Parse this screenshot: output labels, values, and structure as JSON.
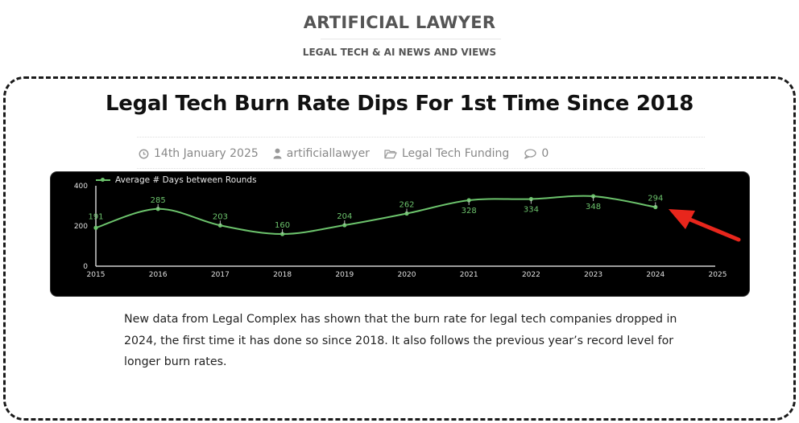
{
  "site": {
    "title": "ARTIFICIAL LAWYER",
    "tagline": "LEGAL TECH & AI NEWS AND VIEWS"
  },
  "post": {
    "title": "Legal Tech Burn Rate Dips For 1st Time Since 2018",
    "meta": {
      "date": "14th January 2025",
      "date_icon": "clock-icon",
      "author": "artificiallawyer",
      "author_icon": "user-icon",
      "category": "Legal Tech Funding",
      "category_icon": "folder-icon",
      "comments": "0",
      "comments_icon": "comment-icon"
    },
    "body": "New data from Legal Complex has shown that the burn rate for legal tech companies dropped in 2024, the first time it has done so since 2018. It also follows the previous year’s record level for longer burn rates."
  },
  "colors": {
    "line": "#6cc36c",
    "chart_bg": "#000000",
    "axis": "#cfcfcf",
    "annotation_arrow": "#e8261c"
  },
  "chart_data": {
    "type": "line",
    "title": "",
    "legend": [
      "Average # Days between Rounds"
    ],
    "legend_position": "top-left",
    "x": [
      "2015",
      "2016",
      "2017",
      "2018",
      "2019",
      "2020",
      "2021",
      "2022",
      "2023",
      "2024"
    ],
    "x_ticks": [
      "2015",
      "2016",
      "2017",
      "2018",
      "2019",
      "2020",
      "2021",
      "2022",
      "2023",
      "2024",
      "2025"
    ],
    "series": [
      {
        "name": "Average # Days between Rounds",
        "values": [
          191,
          285,
          203,
          160,
          204,
          262,
          328,
          334,
          348,
          294
        ]
      }
    ],
    "data_labels": [
      "191",
      "285",
      "203",
      "160",
      "204",
      "262",
      "328",
      "334",
      "348",
      "294"
    ],
    "y_ticks": [
      "0",
      "200",
      "400"
    ],
    "ylim": [
      0,
      400
    ],
    "xlabel": "",
    "ylabel": "",
    "grid": false,
    "annotations": [
      "red arrow pointing at 2024 value (294)"
    ]
  }
}
